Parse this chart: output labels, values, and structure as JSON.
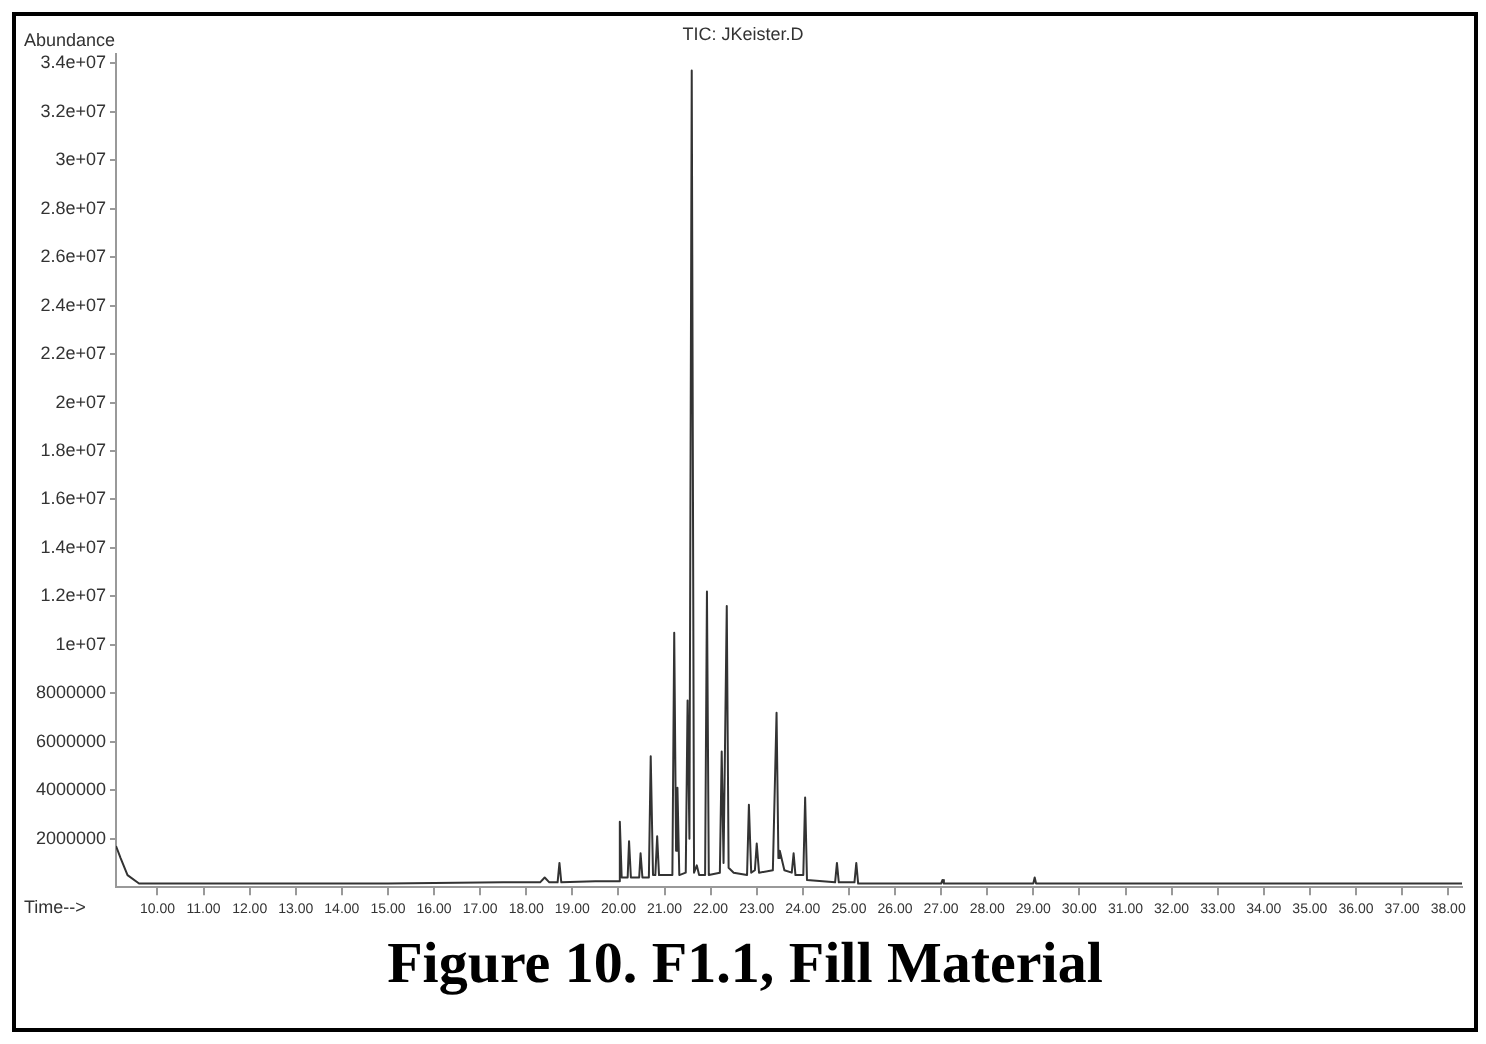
{
  "chart_data": {
    "type": "line",
    "title": "Figure 10. F1.1, Fill Material",
    "subtitle": "TIC: JKeister.D",
    "xlabel": "Time-->",
    "ylabel": "Abundance",
    "x": [
      9.1,
      9.2,
      9.35,
      9.6,
      12,
      15,
      17.5,
      18.3,
      18.4,
      18.5,
      18.68,
      18.72,
      18.76,
      19.5,
      20.0,
      20.03,
      20.07,
      20.2,
      20.23,
      20.27,
      20.45,
      20.48,
      20.52,
      20.66,
      20.7,
      20.75,
      20.8,
      20.84,
      20.88,
      21.17,
      21.21,
      21.25,
      21.28,
      21.32,
      21.46,
      21.5,
      21.54,
      21.59,
      21.64,
      21.7,
      21.75,
      21.88,
      21.92,
      21.96,
      22.2,
      22.24,
      22.28,
      22.35,
      22.39,
      22.5,
      22.79,
      22.83,
      22.88,
      22.96,
      23.0,
      23.05,
      23.35,
      23.43,
      23.47,
      23.5,
      23.6,
      23.76,
      23.8,
      23.84,
      24.01,
      24.05,
      24.09,
      24.7,
      24.74,
      24.78,
      25.12,
      25.16,
      25.2,
      27.0,
      27.03,
      27.06,
      29.0,
      29.03,
      29.06,
      33,
      38.3
    ],
    "series": [
      {
        "color": "#333333",
        "values": [
          1700000,
          1200000,
          500000,
          150000,
          150000,
          150000,
          200000,
          200000,
          400000,
          200000,
          200000,
          1000000,
          200000,
          250000,
          250000,
          2700000,
          400000,
          400000,
          1900000,
          400000,
          400000,
          1400000,
          400000,
          400000,
          5400000,
          500000,
          500000,
          2100000,
          500000,
          500000,
          10500000,
          1500000,
          4100000,
          500000,
          600000,
          7700000,
          2000000,
          33700000,
          600000,
          900000,
          500000,
          500000,
          12200000,
          500000,
          600000,
          5600000,
          1000000,
          11600000,
          800000,
          600000,
          500000,
          3400000,
          600000,
          700000,
          1800000,
          600000,
          700000,
          7200000,
          1200000,
          1500000,
          700000,
          600000,
          1400000,
          500000,
          500000,
          3700000,
          300000,
          200000,
          1000000,
          200000,
          200000,
          1000000,
          150000,
          150000,
          300000,
          150000,
          150000,
          400000,
          150000,
          150000,
          150000
        ]
      }
    ],
    "xlim": [
      9.1,
      38.3
    ],
    "ylim": [
      0,
      34400000
    ],
    "xticks": [
      {
        "value": 10,
        "label": "10.00"
      },
      {
        "value": 11,
        "label": "11.00"
      },
      {
        "value": 12,
        "label": "12.00"
      },
      {
        "value": 13,
        "label": "13.00"
      },
      {
        "value": 14,
        "label": "14.00"
      },
      {
        "value": 15,
        "label": "15.00"
      },
      {
        "value": 16,
        "label": "16.00"
      },
      {
        "value": 17,
        "label": "17.00"
      },
      {
        "value": 18,
        "label": "18.00"
      },
      {
        "value": 19,
        "label": "19.00"
      },
      {
        "value": 20,
        "label": "20.00"
      },
      {
        "value": 21,
        "label": "21.00"
      },
      {
        "value": 22,
        "label": "22.00"
      },
      {
        "value": 23,
        "label": "23.00"
      },
      {
        "value": 24,
        "label": "24.00"
      },
      {
        "value": 25,
        "label": "25.00"
      },
      {
        "value": 26,
        "label": "26.00"
      },
      {
        "value": 27,
        "label": "27.00"
      },
      {
        "value": 28,
        "label": "28.00"
      },
      {
        "value": 29,
        "label": "29.00"
      },
      {
        "value": 30,
        "label": "30.00"
      },
      {
        "value": 31,
        "label": "31.00"
      },
      {
        "value": 32,
        "label": "32.00"
      },
      {
        "value": 33,
        "label": "33.00"
      },
      {
        "value": 34,
        "label": "34.00"
      },
      {
        "value": 35,
        "label": "35.00"
      },
      {
        "value": 36,
        "label": "36.00"
      },
      {
        "value": 37,
        "label": "37.00"
      },
      {
        "value": 38,
        "label": "38.00"
      }
    ],
    "yticks": [
      2000000,
      4000000,
      6000000,
      8000000,
      {
        "value": 10000000,
        "label": "1e+07"
      },
      {
        "value": 12000000,
        "label": "1.2e+07"
      },
      {
        "value": 14000000,
        "label": "1.4e+07"
      },
      {
        "value": 16000000,
        "label": "1.6e+07"
      },
      {
        "value": 18000000,
        "label": "1.8e+07"
      },
      {
        "value": 20000000,
        "label": "2e+07"
      },
      {
        "value": 22000000,
        "label": "2.2e+07"
      },
      {
        "value": 24000000,
        "label": "2.4e+07"
      },
      {
        "value": 26000000,
        "label": "2.6e+07"
      },
      {
        "value": 28000000,
        "label": "2.8e+07"
      },
      {
        "value": 30000000,
        "label": "3e+07"
      },
      {
        "value": 32000000,
        "label": "3.2e+07"
      },
      {
        "value": 34000000,
        "label": "3.4e+07"
      }
    ],
    "marker": "none",
    "line_style": "solid"
  }
}
